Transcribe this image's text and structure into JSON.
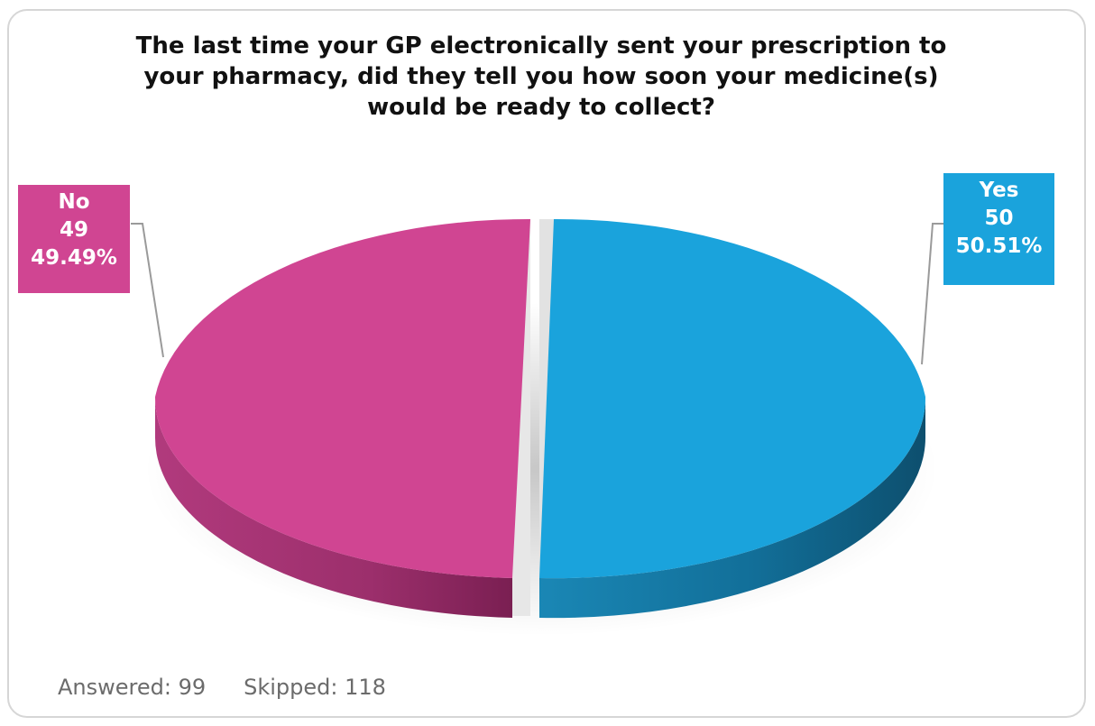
{
  "chart_data": {
    "type": "pie",
    "title": [
      "The last time your GP electronically sent your prescription to",
      "your pharmacy,  did they tell you how soon your medicine(s)",
      "would be ready to collect?"
    ],
    "slices": [
      {
        "label": "Yes",
        "count": "50",
        "percent": "50.51%",
        "value": 50.51,
        "color": "#1aa3dc"
      },
      {
        "label": "No",
        "count": "49",
        "percent": "49.49%",
        "value": 49.49,
        "color": "#d04592"
      }
    ],
    "style": "3d-exploded"
  },
  "footer": {
    "answered": "Answered: 99",
    "skipped": "Skipped: 118"
  }
}
